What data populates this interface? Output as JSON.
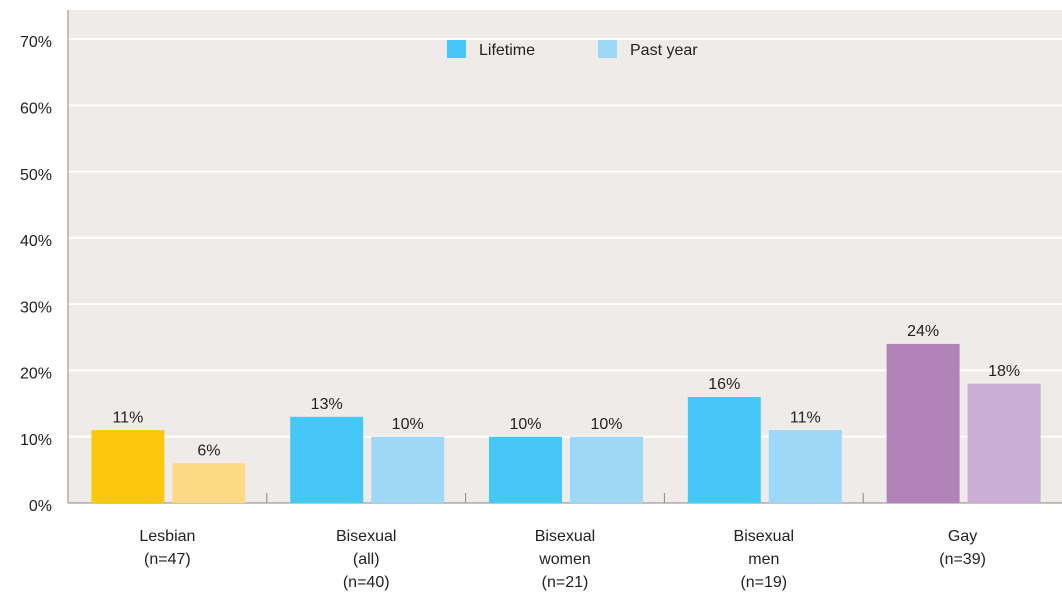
{
  "chart_data": {
    "type": "bar",
    "categories": [
      [
        "Lesbian",
        "(n=47)"
      ],
      [
        "Bisexual",
        "(all)",
        "(n=40)"
      ],
      [
        "Bisexual",
        "women",
        "(n=21)"
      ],
      [
        "Bisexual",
        "men",
        "(n=19)"
      ],
      [
        "Gay",
        "(n=39)"
      ]
    ],
    "series": [
      {
        "name": "Lifetime",
        "color": "#45c8f5",
        "colors": [
          "#fdc70c",
          "#45c8f5",
          "#45c8f5",
          "#45c8f5",
          "#b183b8"
        ],
        "values": [
          11,
          13,
          10,
          16,
          24
        ],
        "value_labels": [
          "11%",
          "13%",
          "10%",
          "16%",
          "24%"
        ]
      },
      {
        "name": "Past year",
        "color": "#9dd9f7",
        "colors": [
          "#fdd985",
          "#9dd9f7",
          "#9dd9f7",
          "#9dd9f7",
          "#cbaed3"
        ],
        "values": [
          6,
          10,
          10,
          11,
          18
        ],
        "value_labels": [
          "6%",
          "10%",
          "10%",
          "11%",
          "18%"
        ]
      }
    ],
    "ylim": [
      0,
      70
    ],
    "yticks": [
      {
        "value": 0,
        "label": "0%"
      },
      {
        "value": 10,
        "label": "10%"
      },
      {
        "value": 20,
        "label": "20%"
      },
      {
        "value": 30,
        "label": "30%"
      },
      {
        "value": 40,
        "label": "40%"
      },
      {
        "value": 50,
        "label": "50%"
      },
      {
        "value": 60,
        "label": "60%"
      },
      {
        "value": 70,
        "label": "70%"
      }
    ],
    "grid": true,
    "legend": "top"
  }
}
